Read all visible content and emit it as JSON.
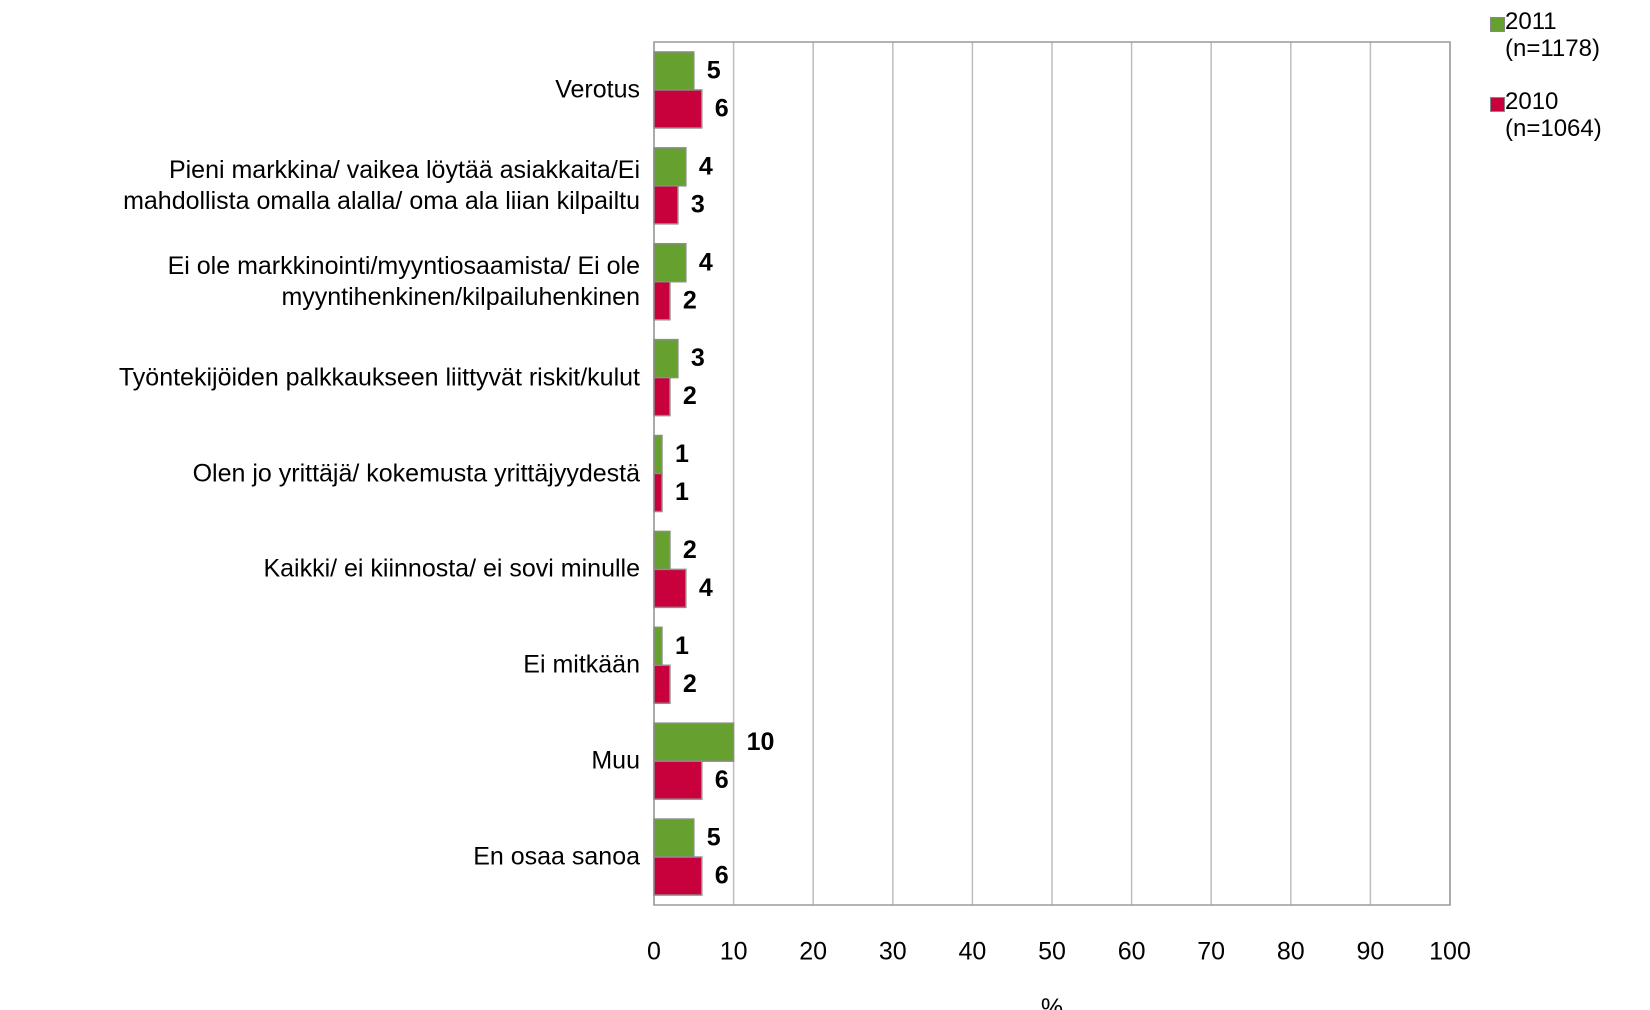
{
  "chart_data": {
    "type": "bar",
    "orientation": "horizontal",
    "categories": [
      "Verotus",
      "Pieni markkina/ vaikea löytää asiakkaita/Ei\nmahdollista omalla alalla/ oma ala liian kilpailtu",
      "Ei ole markkinointi/myyntiosaamista/ Ei ole\nmyyntihenkinen/kilpailuhenkinen",
      "Työntekijöiden palkkaukseen liittyvät riskit/kulut",
      "Olen jo yrittäjä/ kokemusta yrittäjyydestä",
      "Kaikki/ ei kiinnosta/ ei sovi minulle",
      "Ei mitkään",
      "Muu",
      "En osaa sanoa"
    ],
    "series": [
      {
        "name": "2011\n(n=1178)",
        "color": "#66a02e",
        "values": [
          5,
          4,
          4,
          3,
          1,
          2,
          1,
          10,
          5
        ]
      },
      {
        "name": "2010\n(n=1064)",
        "color": "#c8003c",
        "values": [
          6,
          3,
          2,
          2,
          1,
          4,
          2,
          6,
          6
        ]
      }
    ],
    "xlabel": "%",
    "xlim": [
      0,
      100
    ],
    "xticks": [
      0,
      10,
      20,
      30,
      40,
      50,
      60,
      70,
      80,
      90,
      100
    ],
    "grid": true,
    "legend": "top-right"
  }
}
